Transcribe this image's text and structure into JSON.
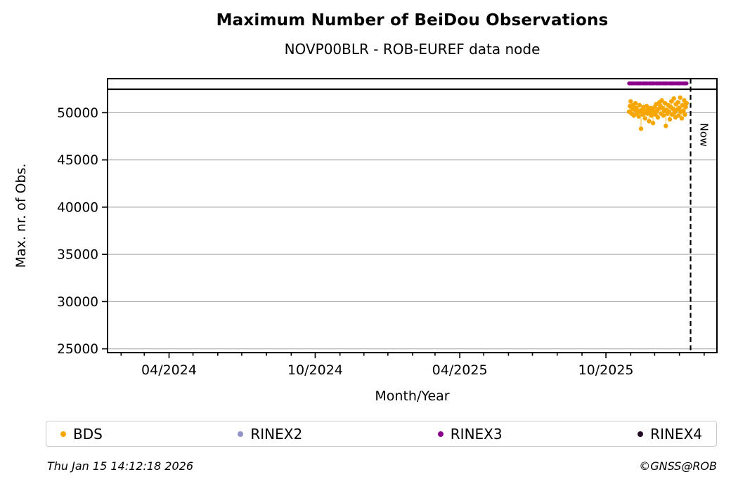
{
  "chart_data": {
    "type": "scatter",
    "title": "Maximum Number of BeiDou Observations",
    "subtitle": "NOVP00BLR - ROB-EUREF data node",
    "xlabel": "Month/Year",
    "ylabel": "Max. nr. of Obs.",
    "ylim": [
      24600,
      53600
    ],
    "xlim": [
      "2024-01-15",
      "2026-02-17"
    ],
    "grid": "horizontal-only",
    "grid_color": "#b0b0b0",
    "legend_position": "bottom",
    "yticks": [
      25000,
      30000,
      35000,
      40000,
      45000,
      50000
    ],
    "xticks": [
      {
        "date": "2024-04-01",
        "label": "04/2024"
      },
      {
        "date": "2024-10-01",
        "label": "10/2024"
      },
      {
        "date": "2025-04-01",
        "label": "04/2025"
      },
      {
        "date": "2025-10-01",
        "label": "10/2025"
      }
    ],
    "minor_xticks": "monthly",
    "now_line": {
      "date": "2026-01-15",
      "label": "Now",
      "style": "dashed-black"
    },
    "separator_line": {
      "value": 52480,
      "color": "#000000",
      "note": "full-width rule below availability strip"
    },
    "series": [
      {
        "name": "BDS",
        "color": "#f7a600",
        "marker": "dot",
        "points": [
          [
            "2025-10-30",
            50100
          ],
          [
            "2025-10-31",
            50700
          ],
          [
            "2025-11-01",
            51200
          ],
          [
            "2025-11-02",
            49900
          ],
          [
            "2025-11-03",
            50400
          ],
          [
            "2025-11-04",
            50800
          ],
          [
            "2025-11-05",
            49700
          ],
          [
            "2025-11-06",
            50300
          ],
          [
            "2025-11-07",
            51000
          ],
          [
            "2025-11-08",
            50500
          ],
          [
            "2025-11-09",
            49900
          ],
          [
            "2025-11-10",
            50200
          ],
          [
            "2025-11-11",
            49600
          ],
          [
            "2025-11-12",
            50800
          ],
          [
            "2025-11-13",
            50100
          ],
          [
            "2025-11-14",
            48300
          ],
          [
            "2025-11-15",
            50300
          ],
          [
            "2025-11-16",
            49800
          ],
          [
            "2025-11-17",
            50600
          ],
          [
            "2025-11-18",
            50000
          ],
          [
            "2025-11-19",
            49400
          ],
          [
            "2025-11-20",
            50200
          ],
          [
            "2025-11-21",
            50700
          ],
          [
            "2025-11-22",
            49900
          ],
          [
            "2025-11-23",
            50400
          ],
          [
            "2025-11-24",
            49100
          ],
          [
            "2025-11-25",
            50000
          ],
          [
            "2025-11-26",
            50500
          ],
          [
            "2025-11-27",
            49700
          ],
          [
            "2025-11-28",
            50300
          ],
          [
            "2025-11-29",
            48900
          ],
          [
            "2025-11-30",
            50100
          ],
          [
            "2025-12-01",
            50600
          ],
          [
            "2025-12-02",
            49800
          ],
          [
            "2025-12-03",
            50900
          ],
          [
            "2025-12-04",
            50200
          ],
          [
            "2025-12-05",
            49500
          ],
          [
            "2025-12-06",
            50400
          ],
          [
            "2025-12-07",
            51100
          ],
          [
            "2025-12-08",
            50700
          ],
          [
            "2025-12-09",
            49900
          ],
          [
            "2025-12-10",
            51300
          ],
          [
            "2025-12-11",
            50500
          ],
          [
            "2025-12-12",
            49700
          ],
          [
            "2025-12-13",
            50200
          ],
          [
            "2025-12-14",
            51000
          ],
          [
            "2025-12-15",
            48600
          ],
          [
            "2025-12-16",
            50300
          ],
          [
            "2025-12-17",
            49900
          ],
          [
            "2025-12-18",
            50800
          ],
          [
            "2025-12-19",
            50100
          ],
          [
            "2025-12-20",
            49300
          ],
          [
            "2025-12-21",
            50600
          ],
          [
            "2025-12-22",
            51200
          ],
          [
            "2025-12-23",
            49800
          ],
          [
            "2025-12-24",
            50400
          ],
          [
            "2025-12-25",
            51500
          ],
          [
            "2025-12-26",
            50000
          ],
          [
            "2025-12-27",
            49500
          ],
          [
            "2025-12-28",
            50900
          ],
          [
            "2025-12-29",
            50300
          ],
          [
            "2025-12-30",
            51100
          ],
          [
            "2025-12-31",
            49700
          ],
          [
            "2026-01-01",
            50500
          ],
          [
            "2026-01-02",
            51600
          ],
          [
            "2026-01-03",
            50100
          ],
          [
            "2026-01-04",
            49400
          ],
          [
            "2026-01-05",
            50800
          ],
          [
            "2026-01-06",
            50200
          ],
          [
            "2026-01-07",
            51300
          ],
          [
            "2026-01-08",
            49800
          ],
          [
            "2026-01-09",
            50600
          ],
          [
            "2026-01-10",
            51000
          ]
        ]
      },
      {
        "name": "RINEX2",
        "color": "#9393c8",
        "marker": "dot",
        "points": []
      },
      {
        "name": "RINEX3",
        "color": "#8b008b",
        "marker": "availability-bar",
        "value": 53100,
        "start": "2025-10-30",
        "end": "2026-01-10"
      },
      {
        "name": "RINEX4",
        "color": "#230823",
        "marker": "dot",
        "points": []
      }
    ]
  },
  "legend": {
    "items": [
      {
        "label": "BDS",
        "color": "#f7a600"
      },
      {
        "label": "RINEX2",
        "color": "#9393c8"
      },
      {
        "label": "RINEX3",
        "color": "#8b008b"
      },
      {
        "label": "RINEX4",
        "color": "#230823"
      }
    ]
  },
  "footer": {
    "timestamp": "Thu Jan 15 14:12:18 2026",
    "credit": "©GNSS@ROB"
  }
}
